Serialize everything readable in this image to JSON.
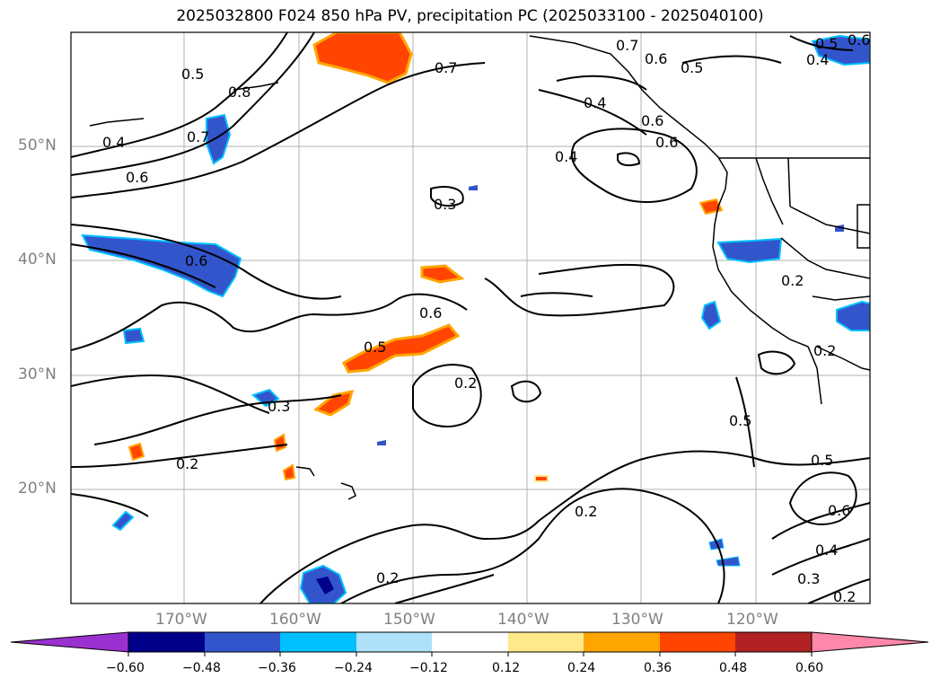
{
  "title": "2025032800 F024 850 hPa PV, precipitation PC (2025033100 - 2025040100)",
  "map": {
    "lat_labels": [
      "50°N",
      "40°N",
      "30°N",
      "20°N"
    ],
    "lon_labels": [
      "170°W",
      "160°W",
      "150°W",
      "140°W",
      "130°W",
      "120°W"
    ],
    "contour_labels": [
      "0.5",
      "0.8",
      "0.7",
      "0.4",
      "0.6",
      "0.7",
      "0.7",
      "0.6",
      "0.5",
      "0.4",
      "0.5",
      "0.6",
      "0.4",
      "0.4",
      "0.6",
      "0.6",
      "0.3",
      "0.6",
      "0.2",
      "0.6",
      "0.5",
      "0.2",
      "0.3",
      "0.2",
      "0.5",
      "0.2",
      "0.5",
      "0.6",
      "0.4",
      "0.3",
      "0.2",
      "0.2",
      "0.2"
    ],
    "colors": {
      "land": "#000000",
      "grid": "#b0b0b0",
      "contour": "#000000"
    }
  },
  "colorbar": {
    "colors": [
      "#9b30d0",
      "#00008b",
      "#3355cc",
      "#00bfff",
      "#aee0fa",
      "#ffffff",
      "#ffe98a",
      "#ffa500",
      "#ff4500",
      "#b22222",
      "#ff88aa"
    ],
    "tick_labels": [
      "−0.60",
      "−0.48",
      "−0.36",
      "−0.24",
      "−0.12",
      "0.12",
      "0.24",
      "0.36",
      "0.48",
      "0.60"
    ]
  }
}
